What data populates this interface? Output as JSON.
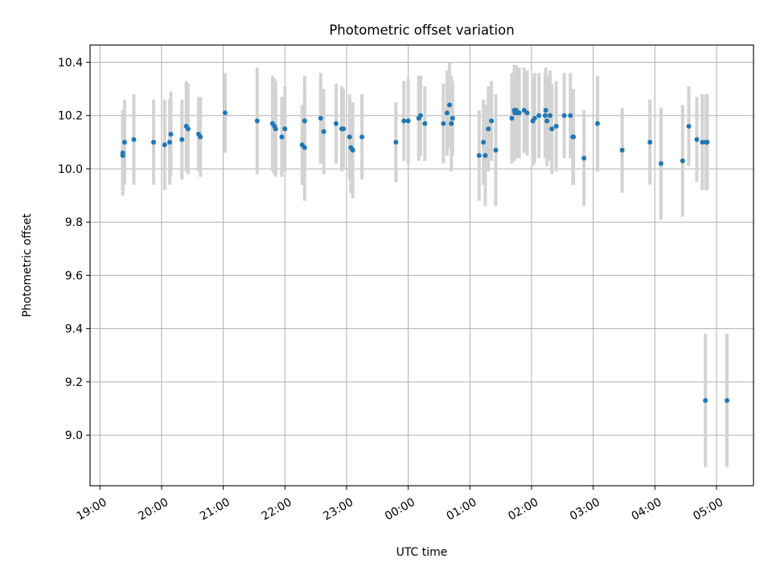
{
  "chart_data": {
    "type": "scatter",
    "title": "Photometric offset variation",
    "xlabel": "UTC time",
    "ylabel": "Photometric offset",
    "grid": true,
    "ylim": [
      8.81,
      10.465
    ],
    "xlim": [
      -0.16,
      10.6
    ],
    "x_axis_origin": "19:00",
    "x_ticks": [
      "19:00",
      "20:00",
      "21:00",
      "22:00",
      "23:00",
      "00:00",
      "01:00",
      "02:00",
      "03:00",
      "04:00",
      "05:00"
    ],
    "y_ticks": [
      9.0,
      9.2,
      9.4,
      9.6,
      9.8,
      10.0,
      10.2,
      10.4
    ],
    "y_tick_labels": [
      "9.0",
      "9.2",
      "9.4",
      "9.6",
      "9.8",
      "10.0",
      "10.2",
      "10.4"
    ],
    "colors": {
      "marker": "#1f77b4",
      "errorbar": "#d3d3d3",
      "grid": "#b0b0b0"
    },
    "series": [
      {
        "x_hours_since_1900": [
          0.37,
          0.37,
          0.4,
          0.55,
          0.87,
          1.05,
          1.13,
          1.15,
          1.33,
          1.4,
          1.43,
          1.6,
          1.63,
          2.03,
          2.55,
          2.8,
          2.83,
          2.85,
          2.95,
          3.0,
          3.28,
          3.32,
          3.58,
          3.63,
          3.83,
          3.92,
          3.95,
          4.05,
          4.07,
          4.1,
          4.25,
          3.32,
          4.8,
          4.93,
          5.0,
          5.17,
          5.2,
          5.27,
          5.57,
          5.63,
          5.67,
          5.7,
          5.72,
          6.15,
          6.22,
          6.25,
          6.3,
          6.35,
          6.42,
          6.68,
          6.72,
          6.73,
          6.75,
          6.77,
          6.8,
          6.88,
          6.93,
          7.02,
          7.05,
          7.12,
          7.22,
          7.23,
          7.25,
          7.3,
          7.33,
          7.4,
          7.53,
          7.63,
          7.67,
          7.68,
          7.85,
          8.07,
          8.47,
          8.92,
          9.1,
          9.45,
          9.55,
          9.68,
          9.77,
          9.82,
          9.83,
          9.85,
          10.17
        ],
        "y": [
          10.06,
          10.05,
          10.1,
          10.11,
          10.1,
          10.09,
          10.1,
          10.13,
          10.11,
          10.16,
          10.15,
          10.13,
          10.12,
          10.21,
          10.18,
          10.17,
          10.16,
          10.15,
          10.12,
          10.15,
          10.09,
          10.08,
          10.19,
          10.14,
          10.17,
          10.15,
          10.15,
          10.12,
          10.08,
          10.07,
          10.12,
          10.18,
          10.1,
          10.18,
          10.18,
          10.19,
          10.2,
          10.17,
          10.17,
          10.21,
          10.24,
          10.17,
          10.19,
          10.05,
          10.1,
          10.05,
          10.15,
          10.18,
          10.07,
          10.19,
          10.22,
          10.21,
          10.22,
          10.21,
          10.21,
          10.22,
          10.21,
          10.18,
          10.19,
          10.2,
          10.2,
          10.22,
          10.18,
          10.2,
          10.15,
          10.16,
          10.2,
          10.2,
          10.12,
          10.12,
          10.04,
          10.17,
          10.07,
          10.1,
          10.02,
          10.03,
          10.16,
          10.11,
          10.1,
          9.13,
          10.1,
          10.1,
          9.13
        ],
        "y_err": [
          0.16,
          0.13,
          0.16,
          0.17,
          0.16,
          0.17,
          0.16,
          0.16,
          0.15,
          0.17,
          0.17,
          0.14,
          0.15,
          0.15,
          0.2,
          0.18,
          0.18,
          0.18,
          0.15,
          0.16,
          0.15,
          0.2,
          0.17,
          0.16,
          0.15,
          0.16,
          0.15,
          0.16,
          0.17,
          0.18,
          0.16,
          0.17,
          0.15,
          0.15,
          0.16,
          0.16,
          0.15,
          0.14,
          0.15,
          0.16,
          0.16,
          0.18,
          0.14,
          0.17,
          0.16,
          0.19,
          0.16,
          0.15,
          0.21,
          0.17,
          0.17,
          0.18,
          0.17,
          0.17,
          0.17,
          0.16,
          0.16,
          0.17,
          0.17,
          0.16,
          0.16,
          0.16,
          0.17,
          0.17,
          0.17,
          0.17,
          0.16,
          0.16,
          0.18,
          0.18,
          0.18,
          0.18,
          0.16,
          0.16,
          0.21,
          0.21,
          0.15,
          0.16,
          0.18,
          0.25,
          0.18,
          0.18,
          0.25
        ]
      }
    ]
  }
}
